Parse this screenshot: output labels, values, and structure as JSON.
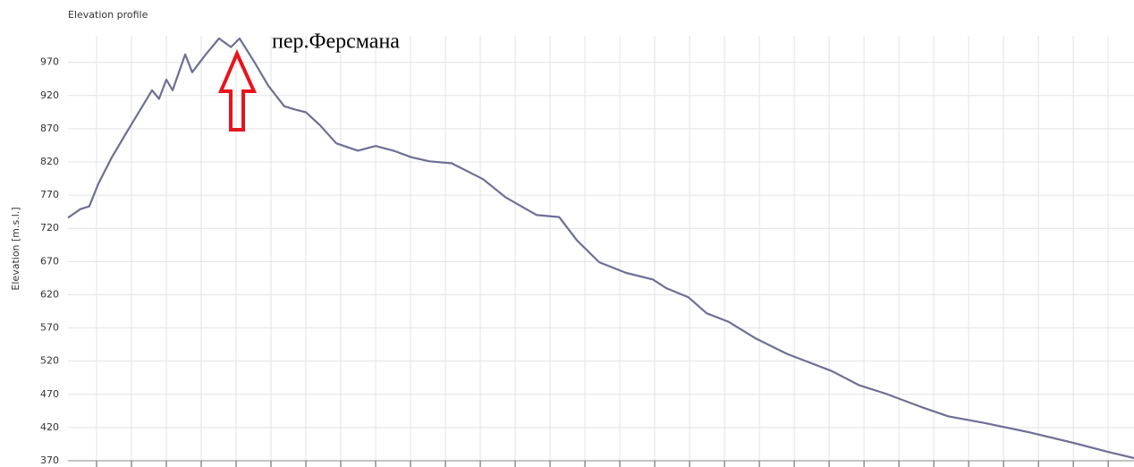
{
  "chart_data": {
    "type": "line",
    "title": "Elevation profile",
    "y_label": "Elevation [m.s.l.]",
    "annotation": "пер.Ферсмана",
    "x": [
      0.18,
      0.54,
      0.79,
      1.05,
      1.44,
      1.82,
      2.21,
      2.59,
      2.79,
      3.0,
      3.18,
      3.54,
      3.74,
      4.13,
      4.51,
      4.85,
      5.1,
      5.54,
      5.92,
      6.38,
      6.69,
      7.0,
      7.41,
      7.87,
      8.49,
      9.0,
      9.51,
      10.03,
      10.54,
      11.18,
      12.08,
      12.72,
      13.62,
      14.26,
      14.77,
      15.41,
      16.18,
      16.95,
      17.33,
      17.97,
      18.49,
      19.13,
      19.9,
      20.79,
      22.08,
      22.85,
      23.62,
      24.64,
      25.41,
      26.44,
      27.72,
      29.0,
      30.03,
      30.74
    ],
    "series": [
      {
        "name": "Elevation",
        "color": "#6e6e96",
        "values": [
          736,
          749,
          753,
          787,
          827,
          861,
          895,
          928,
          915,
          944,
          928,
          982,
          955,
          982,
          1006,
          993,
          1006,
          969,
          935,
          904,
          899,
          895,
          875,
          848,
          837,
          844,
          837,
          827,
          821,
          818,
          794,
          767,
          740,
          737,
          702,
          669,
          653,
          643,
          630,
          616,
          592,
          579,
          554,
          531,
          505,
          484,
          471,
          451,
          437,
          427,
          413,
          397,
          383,
          374
        ]
      }
    ],
    "xlim": [
      0.18,
      30.74
    ],
    "xticks": [
      1,
      2,
      3,
      4,
      5,
      6,
      7,
      8,
      9,
      10,
      11,
      12,
      13,
      14,
      15,
      16,
      17,
      18,
      19,
      20,
      21,
      22,
      23,
      24,
      25,
      26,
      27,
      28,
      29,
      30
    ],
    "ylim": [
      370,
      1010
    ],
    "yticks": [
      370,
      420,
      470,
      520,
      570,
      620,
      670,
      720,
      770,
      820,
      870,
      920,
      970
    ],
    "grid": true
  }
}
